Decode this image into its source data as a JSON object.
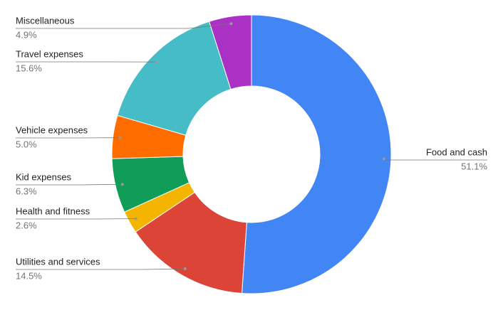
{
  "chart_data": {
    "type": "pie",
    "donut": true,
    "categories": [
      "Food and cash",
      "Utilities and services",
      "Health and fitness",
      "Kid expenses",
      "Vehicle expenses",
      "Travel expenses",
      "Miscellaneous"
    ],
    "values": [
      51.1,
      14.5,
      2.6,
      6.3,
      5.0,
      15.6,
      4.9
    ],
    "value_labels": [
      "51.1%",
      "14.5%",
      "2.6%",
      "6.3%",
      "5.0%",
      "15.6%",
      "4.9%"
    ],
    "colors": [
      "#4285f4",
      "#db4437",
      "#f4b400",
      "#0f9d58",
      "#ff6d00",
      "#46bdc6",
      "#ab30c4"
    ]
  }
}
